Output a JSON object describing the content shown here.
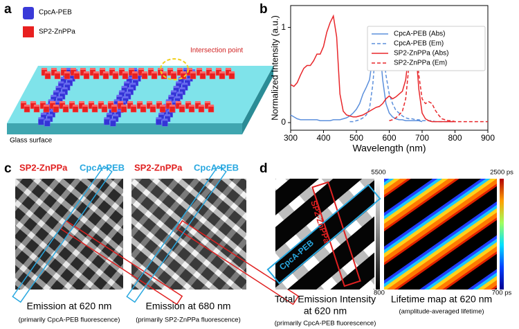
{
  "panel_labels": [
    "a",
    "b",
    "c",
    "d"
  ],
  "panel_a": {
    "legend": [
      "CpcA-PEB",
      "SP2-ZnPPa"
    ],
    "annotation": "Intersection point",
    "surface": "Glass surface"
  },
  "chart_data": {
    "type": "line",
    "xlabel": "Wavelength (nm)",
    "ylabel": "Normalized Intensity (a.u.)",
    "xlim": [
      300,
      900
    ],
    "ylim": [
      -0.08,
      1.23
    ],
    "xticks": [
      300,
      400,
      500,
      600,
      700,
      800,
      900
    ],
    "yticks": [
      0,
      1
    ],
    "legend": "upper right",
    "grid": false,
    "x": [
      300,
      310,
      320,
      330,
      340,
      350,
      360,
      370,
      380,
      390,
      400,
      410,
      420,
      430,
      440,
      450,
      460,
      470,
      480,
      490,
      500,
      510,
      520,
      530,
      540,
      550,
      560,
      570,
      580,
      590,
      600,
      610,
      620,
      630,
      640,
      650,
      660,
      670,
      680,
      690,
      700,
      710,
      720,
      730,
      740,
      750,
      760,
      770,
      780,
      790,
      800,
      810,
      820,
      830,
      840,
      850,
      860,
      870,
      880,
      890,
      900
    ],
    "series": [
      {
        "name": "CpcA-PEB (Abs)",
        "color": "#5b8fdc",
        "style": "solid",
        "values": [
          0.08,
          0.06,
          0.04,
          0.03,
          0.03,
          0.03,
          0.03,
          0.03,
          0.03,
          0.02,
          0.02,
          0.02,
          0.02,
          0.03,
          0.03,
          0.03,
          0.04,
          0.05,
          0.07,
          0.1,
          0.14,
          0.2,
          0.3,
          0.37,
          0.45,
          0.7,
          1.0,
          0.85,
          0.45,
          0.2,
          0.1,
          0.06,
          0.04,
          0.03,
          0.03,
          0.02,
          0.02,
          0.02,
          0.02,
          0.02,
          0.01,
          null,
          null,
          null,
          null,
          null,
          null,
          null,
          null,
          null,
          null,
          null,
          null,
          null,
          null,
          null,
          null,
          null,
          null,
          null,
          null
        ]
      },
      {
        "name": "CpcA-PEB (Em)",
        "color": "#5b8fdc",
        "style": "dashed",
        "values": [
          null,
          null,
          null,
          null,
          null,
          null,
          null,
          null,
          null,
          null,
          null,
          null,
          null,
          null,
          null,
          null,
          null,
          null,
          0.01,
          0.01,
          0.02,
          0.03,
          0.05,
          0.08,
          0.15,
          0.4,
          0.85,
          1.0,
          0.8,
          0.5,
          0.3,
          0.2,
          0.13,
          0.1,
          0.07,
          0.05,
          0.04,
          0.04,
          0.03,
          0.03,
          0.02,
          0.02,
          0.02,
          0.02,
          0.01,
          0.01,
          0.01,
          0.01,
          0.01,
          0.01,
          0.01,
          null,
          null,
          null,
          null,
          null,
          null,
          null,
          null,
          null,
          null
        ]
      },
      {
        "name": "SP2-ZnPPa (Abs)",
        "color": "#e8262a",
        "style": "solid",
        "values": [
          0.4,
          0.38,
          0.42,
          0.5,
          0.57,
          0.6,
          0.6,
          0.65,
          0.72,
          0.72,
          0.8,
          0.95,
          1.05,
          1.12,
          0.9,
          0.3,
          0.12,
          0.08,
          0.07,
          0.06,
          0.06,
          0.07,
          0.08,
          0.1,
          0.12,
          0.14,
          0.16,
          0.17,
          0.2,
          0.25,
          0.28,
          0.25,
          0.27,
          0.3,
          0.33,
          0.45,
          0.75,
          1.0,
          0.8,
          0.35,
          0.1,
          0.04,
          0.02,
          0.01,
          0.01,
          0.01,
          0.01,
          0.01,
          0.01,
          0.01,
          0.01,
          null,
          null,
          null,
          null,
          null,
          null,
          null,
          null,
          null,
          null
        ]
      },
      {
        "name": "SP2-ZnPPa (Em)",
        "color": "#e8262a",
        "style": "dashed",
        "values": [
          null,
          null,
          null,
          null,
          null,
          null,
          null,
          null,
          null,
          null,
          null,
          null,
          null,
          null,
          null,
          null,
          null,
          null,
          null,
          null,
          null,
          null,
          null,
          null,
          null,
          null,
          null,
          null,
          null,
          null,
          0.02,
          0.03,
          0.05,
          0.08,
          0.12,
          0.25,
          0.6,
          0.97,
          0.9,
          0.5,
          0.25,
          0.2,
          0.22,
          0.2,
          0.13,
          0.08,
          0.04,
          0.03,
          0.02,
          0.02,
          0.01,
          0.01,
          0.01,
          0.01,
          0.01,
          0.01,
          0.01,
          0.01,
          0.01,
          0.01,
          0.01
        ]
      }
    ]
  },
  "panel_c": {
    "images": [
      {
        "labels": [
          "SP2-ZnPPa",
          "CpcA-PEB"
        ],
        "caption": "Emission at 620 nm",
        "subcaption": "(primarily CpcA-PEB fluorescence)"
      },
      {
        "labels": [
          "SP2-ZnPPa",
          "CpcA-PEB"
        ],
        "caption": "Emission at 680 nm",
        "subcaption": "(primarily SP2-ZnPPa fluorescence)"
      }
    ]
  },
  "panel_d": {
    "intensity": {
      "scale_max": 5500,
      "scale_min": 800,
      "labels": [
        "SP2-ZnPPa",
        "CpcA-PEB"
      ],
      "caption": "Total Emission Intensity",
      "caption2": "at 620 nm",
      "subcaption": "(primarily CpcA-PEB fluorescence)"
    },
    "lifetime": {
      "scale_max": "2500 ps",
      "scale_min": "700 ps",
      "caption": "Lifetime map at 620 nm",
      "subcaption": "(amplitude-averaged lifetime)"
    }
  }
}
